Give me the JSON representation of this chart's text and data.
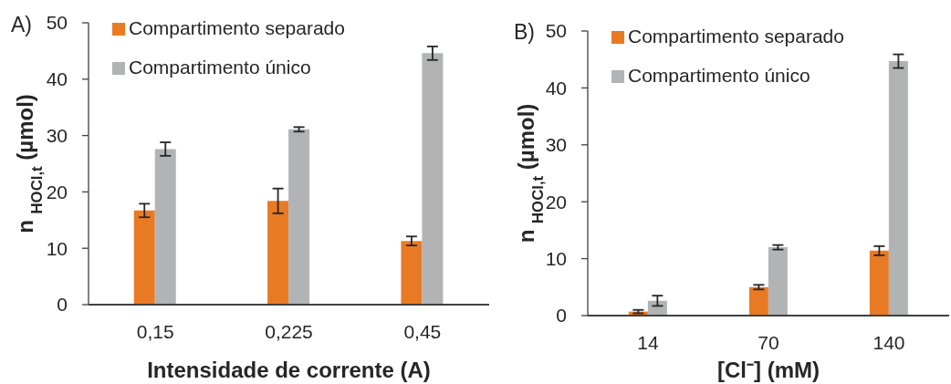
{
  "chart_data": [
    {
      "type": "bar",
      "title": "A)",
      "categories": [
        "0,15",
        "0,225",
        "0,45"
      ],
      "xlabel": "Intensidade de corrente (A)",
      "ylabel": "n $_{HOCl,t}$ (µmol)",
      "series": [
        {
          "name": "Compartimento separado",
          "color": "#e97a24",
          "values": [
            16.7,
            18.4,
            11.3
          ],
          "errors": [
            1.2,
            2.2,
            0.8
          ]
        },
        {
          "name": "Compartimento único",
          "color": "#b2b3b5",
          "values": [
            27.6,
            31.1,
            44.6
          ],
          "errors": [
            1.2,
            0.4,
            1.2
          ]
        }
      ],
      "ylim": [
        0,
        50
      ],
      "yticks": [
        0,
        10,
        20,
        30,
        40,
        50
      ],
      "legend": "top left"
    },
    {
      "type": "bar",
      "title": "B)",
      "categories": [
        "14",
        "70",
        "140"
      ],
      "xlabel": "[Cl⁻] (mM)",
      "ylabel": "n $_{HOCl,t}$ (µmol)",
      "series": [
        {
          "name": "Compartimento separado",
          "color": "#e97a24",
          "values": [
            0.7,
            5.0,
            11.4
          ],
          "errors": [
            0.3,
            0.4,
            0.8
          ]
        },
        {
          "name": "Compartimento único",
          "color": "#b2b3b5",
          "values": [
            2.6,
            12.0,
            44.7
          ],
          "errors": [
            0.9,
            0.4,
            1.2
          ]
        }
      ],
      "ylim": [
        0,
        50
      ],
      "yticks": [
        0,
        10,
        20,
        30,
        40,
        50
      ],
      "legend": "top left"
    }
  ]
}
